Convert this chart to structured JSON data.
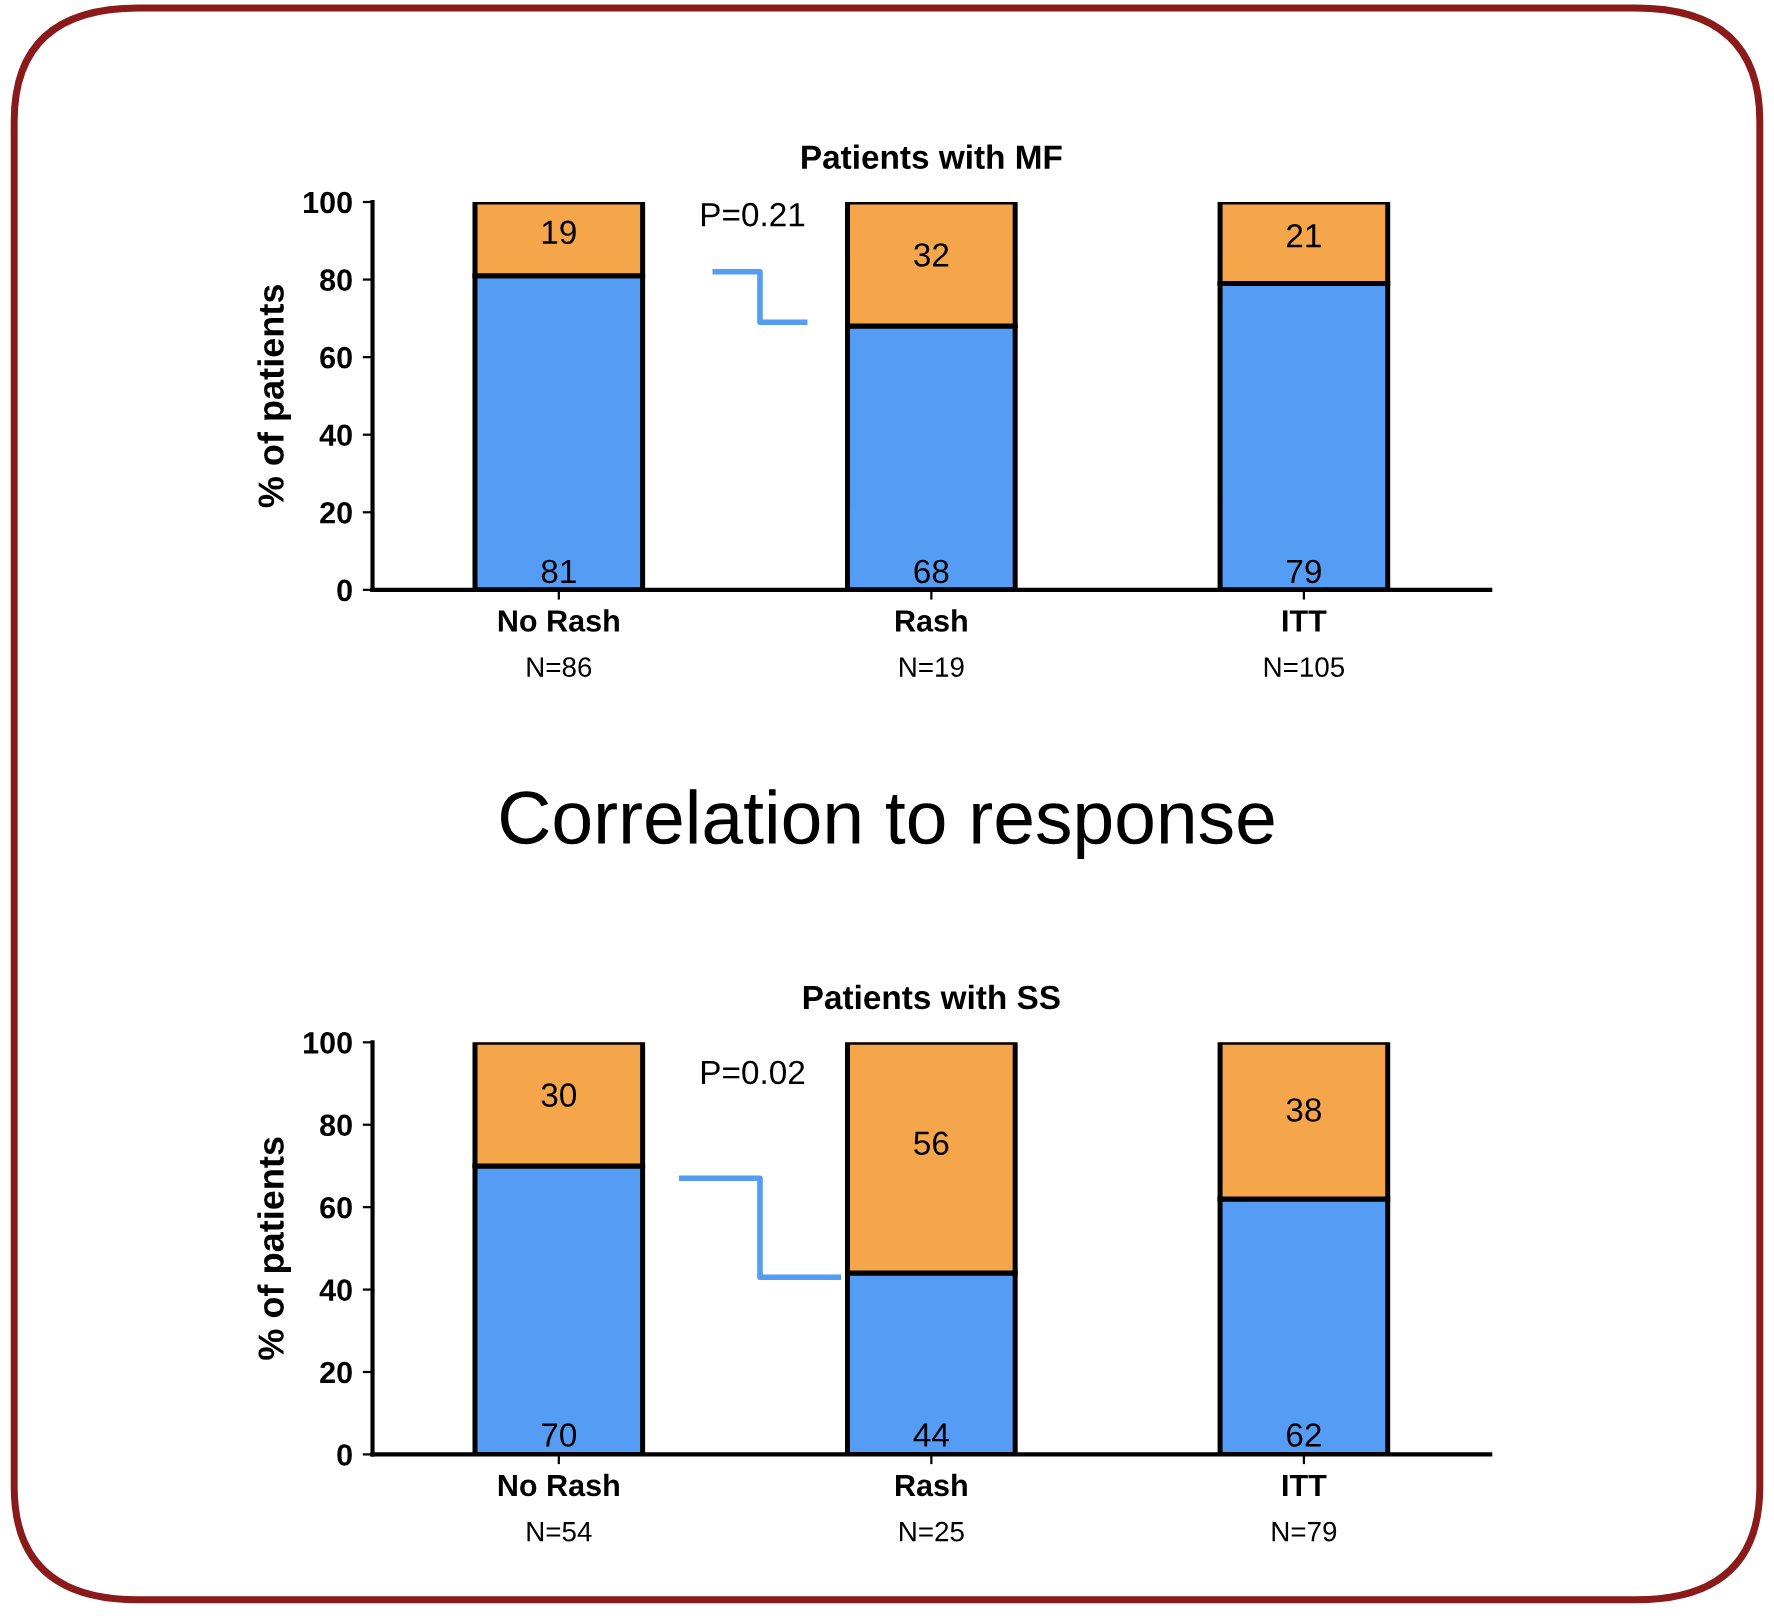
{
  "chart_data": [
    {
      "type": "bar",
      "title": "Patients with MF",
      "ylabel": "% of patients",
      "categories": [
        "No Rash",
        "Rash",
        "ITT"
      ],
      "stacked": true,
      "data_labels": true,
      "legend": false,
      "grid": false,
      "ylim": [
        0,
        100
      ],
      "yticks": [
        0,
        20,
        40,
        60,
        80,
        100
      ],
      "series": [
        {
          "color": "#559cf5",
          "values": [
            81,
            68,
            79
          ]
        },
        {
          "color": "#f5a54a",
          "values": [
            19,
            32,
            21
          ]
        }
      ],
      "annotations": [
        "N=86",
        "N=19",
        "N=105",
        "P=0.21",
        "Correlation to response"
      ]
    },
    {
      "type": "bar",
      "title": "Patients with SS",
      "ylabel": "% of patients",
      "categories": [
        "No Rash",
        "Rash",
        "ITT"
      ],
      "stacked": true,
      "data_labels": true,
      "legend": false,
      "grid": false,
      "ylim": [
        0,
        100
      ],
      "yticks": [
        0,
        20,
        40,
        60,
        80,
        100
      ],
      "series": [
        {
          "color": "#559cf5",
          "values": [
            70,
            44,
            62
          ]
        },
        {
          "color": "#f5a54a",
          "values": [
            30,
            56,
            38
          ]
        }
      ],
      "annotations": [
        "N=54",
        "N=25",
        "N=79",
        "P=0.02"
      ]
    }
  ]
}
